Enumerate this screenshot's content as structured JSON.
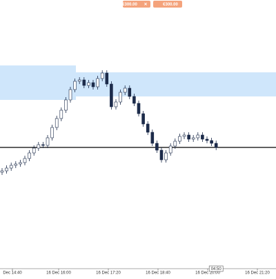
{
  "buttons": [
    "€300.00",
    "✕",
    "€300.00"
  ],
  "countdown": "04:50",
  "chart_data": {
    "type": "candlestick",
    "xtick_labels": [
      "Dec 14:40",
      "16 Dec 16:00",
      "16 Dec 17:20",
      "16 Dec 18:40",
      "16 Dec 20:00",
      "16 Dec 21:20"
    ],
    "ylim": [
      0,
      400
    ],
    "open": [
      150,
      152,
      156,
      160,
      162,
      164,
      170,
      178,
      185,
      190,
      189,
      200,
      215,
      228,
      240,
      255,
      270,
      282,
      284,
      276,
      280,
      274,
      286,
      294,
      278,
      245,
      252,
      266,
      272,
      260,
      250,
      235,
      220,
      208,
      192,
      182,
      168,
      178,
      188,
      195,
      202,
      204,
      198,
      200,
      204,
      198,
      196,
      192
    ],
    "high": [
      156,
      160,
      164,
      166,
      168,
      174,
      182,
      189,
      194,
      194,
      204,
      219,
      232,
      244,
      259,
      274,
      286,
      288,
      288,
      284,
      284,
      290,
      298,
      298,
      282,
      256,
      270,
      276,
      276,
      264,
      254,
      239,
      224,
      212,
      196,
      186,
      182,
      192,
      199,
      206,
      208,
      208,
      204,
      208,
      208,
      202,
      200,
      196
    ],
    "low": [
      146,
      148,
      152,
      156,
      158,
      160,
      166,
      174,
      181,
      185,
      185,
      196,
      211,
      224,
      236,
      251,
      266,
      278,
      272,
      272,
      270,
      270,
      282,
      274,
      241,
      241,
      248,
      262,
      256,
      246,
      231,
      216,
      204,
      188,
      178,
      164,
      164,
      174,
      184,
      191,
      198,
      194,
      194,
      196,
      194,
      192,
      188,
      182
    ],
    "close": [
      152,
      156,
      160,
      162,
      164,
      170,
      178,
      185,
      190,
      189,
      200,
      215,
      228,
      240,
      255,
      270,
      282,
      284,
      276,
      280,
      274,
      286,
      294,
      278,
      245,
      252,
      266,
      272,
      260,
      250,
      235,
      220,
      208,
      192,
      182,
      168,
      178,
      188,
      195,
      202,
      204,
      198,
      200,
      204,
      198,
      196,
      192,
      186
    ],
    "up_color": "#ffffff",
    "down_color": "#1c2b4a",
    "zones": [
      {
        "low": 255,
        "high": 305,
        "color": "#cfe6fb"
      },
      {
        "low": 260,
        "high": 295,
        "color": "#cfe6fb"
      }
    ],
    "level": 186
  }
}
